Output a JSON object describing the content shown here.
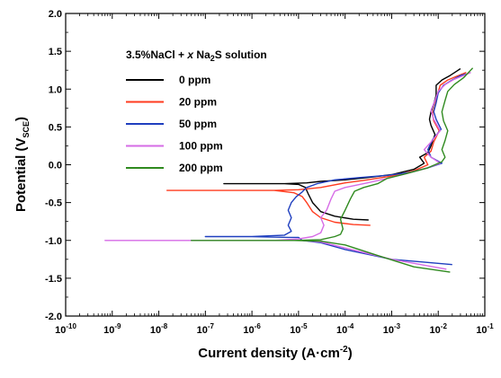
{
  "chart_data": {
    "type": "line",
    "x_scale": "log",
    "xlim": [
      1e-10,
      0.1
    ],
    "ylim": [
      -2.0,
      2.0
    ],
    "grid": false,
    "legend_placement": "top-left",
    "legend_title": {
      "prefix": "3.5%NaCl + ",
      "italic": "x",
      "mid": " Na",
      "sub": "2",
      "suffix": "S solution"
    },
    "xlabel": {
      "text": "Current density (A·cm",
      "sup": "-2",
      "close": ")"
    },
    "ylabel": {
      "text": "Potential (V",
      "sub": "SCE",
      "close": ")"
    },
    "x_ticks": [
      {
        "base": "10",
        "exp": "-10"
      },
      {
        "base": "10",
        "exp": "-9"
      },
      {
        "base": "10",
        "exp": "-8"
      },
      {
        "base": "10",
        "exp": "-7"
      },
      {
        "base": "10",
        "exp": "-6"
      },
      {
        "base": "10",
        "exp": "-5"
      },
      {
        "base": "10",
        "exp": "-4"
      },
      {
        "base": "10",
        "exp": "-3"
      },
      {
        "base": "10",
        "exp": "-2"
      },
      {
        "base": "10",
        "exp": "-1"
      }
    ],
    "y_ticks": [
      "-2.0",
      "-1.5",
      "-1.0",
      "-0.5",
      "0.0",
      "0.5",
      "1.0",
      "1.5",
      "2.0"
    ],
    "series": [
      {
        "name": "0 ppm",
        "color": "#000000",
        "points": [
          [
            0.00032,
            -0.73
          ],
          [
            0.00015,
            -0.72
          ],
          [
            6e-05,
            -0.68
          ],
          [
            3e-05,
            -0.62
          ],
          [
            2e-05,
            -0.5
          ],
          [
            1.6e-05,
            -0.38
          ],
          [
            1.4e-05,
            -0.3
          ],
          [
            1e-05,
            -0.26
          ],
          [
            5e-06,
            -0.25
          ],
          [
            1e-06,
            -0.25
          ],
          [
            2.5e-07,
            -0.25
          ],
          [
            1e-06,
            -0.25
          ],
          [
            5e-06,
            -0.25
          ],
          [
            1.5e-05,
            -0.24
          ],
          [
            3e-05,
            -0.22
          ],
          [
            0.0001,
            -0.2
          ],
          [
            0.0003,
            -0.17
          ],
          [
            0.001,
            -0.13
          ],
          [
            0.003,
            -0.06
          ],
          [
            0.005,
            0.02
          ],
          [
            0.004,
            0.1
          ],
          [
            0.006,
            0.16
          ],
          [
            0.007,
            0.25
          ],
          [
            0.0085,
            0.4
          ],
          [
            0.007,
            0.52
          ],
          [
            0.0065,
            0.6
          ],
          [
            0.007,
            0.7
          ],
          [
            0.008,
            0.8
          ],
          [
            0.009,
            0.92
          ],
          [
            0.009,
            1.05
          ],
          [
            0.012,
            1.12
          ],
          [
            0.018,
            1.18
          ],
          [
            0.03,
            1.27
          ]
        ]
      },
      {
        "name": "20 ppm",
        "color": "#ff3b1f",
        "points": [
          [
            0.00035,
            -0.8
          ],
          [
            0.00015,
            -0.79
          ],
          [
            6e-05,
            -0.76
          ],
          [
            3e-05,
            -0.7
          ],
          [
            2e-05,
            -0.62
          ],
          [
            1.5e-05,
            -0.5
          ],
          [
            1.2e-05,
            -0.42
          ],
          [
            8e-06,
            -0.37
          ],
          [
            3e-06,
            -0.34
          ],
          [
            5e-07,
            -0.34
          ],
          [
            1.5e-08,
            -0.34
          ],
          [
            5e-07,
            -0.34
          ],
          [
            3e-06,
            -0.34
          ],
          [
            1e-05,
            -0.33
          ],
          [
            3e-05,
            -0.3
          ],
          [
            0.0001,
            -0.24
          ],
          [
            0.0003,
            -0.2
          ],
          [
            0.001,
            -0.15
          ],
          [
            0.003,
            -0.08
          ],
          [
            0.006,
            0.0
          ],
          [
            0.005,
            0.1
          ],
          [
            0.007,
            0.18
          ],
          [
            0.008,
            0.3
          ],
          [
            0.0105,
            0.45
          ],
          [
            0.008,
            0.58
          ],
          [
            0.0075,
            0.68
          ],
          [
            0.0085,
            0.78
          ],
          [
            0.0095,
            0.92
          ],
          [
            0.011,
            1.05
          ],
          [
            0.016,
            1.12
          ],
          [
            0.025,
            1.17
          ],
          [
            0.04,
            1.22
          ]
        ]
      },
      {
        "name": "50 ppm",
        "color": "#1f3fbf",
        "points": [
          [
            0.02,
            -1.32
          ],
          [
            0.001,
            -1.25
          ],
          [
            0.0001,
            -1.12
          ],
          [
            3e-05,
            -1.03
          ],
          [
            1.2e-05,
            -1.0
          ],
          [
            1e-05,
            -0.96
          ],
          [
            6e-06,
            -0.96
          ],
          [
            1e-06,
            -0.95
          ],
          [
            1e-07,
            -0.95
          ],
          [
            1e-06,
            -0.95
          ],
          [
            5e-06,
            -0.93
          ],
          [
            7e-06,
            -0.88
          ],
          [
            6e-06,
            -0.8
          ],
          [
            7e-06,
            -0.7
          ],
          [
            6e-06,
            -0.6
          ],
          [
            7e-06,
            -0.5
          ],
          [
            9e-06,
            -0.42
          ],
          [
            1.2e-05,
            -0.36
          ],
          [
            1.5e-05,
            -0.3
          ],
          [
            2.5e-05,
            -0.25
          ],
          [
            6e-05,
            -0.2
          ],
          [
            0.0002,
            -0.17
          ],
          [
            0.0008,
            -0.14
          ],
          [
            0.0025,
            -0.1
          ],
          [
            0.006,
            -0.04
          ],
          [
            0.012,
            0.02
          ],
          [
            0.007,
            0.1
          ],
          [
            0.006,
            0.2
          ],
          [
            0.0075,
            0.33
          ],
          [
            0.0115,
            0.47
          ],
          [
            0.009,
            0.6
          ],
          [
            0.008,
            0.7
          ],
          [
            0.009,
            0.82
          ],
          [
            0.01,
            0.95
          ],
          [
            0.013,
            1.05
          ],
          [
            0.02,
            1.12
          ],
          [
            0.03,
            1.18
          ],
          [
            0.04,
            1.2
          ]
        ]
      },
      {
        "name": "100 ppm",
        "color": "#d66be6",
        "points": [
          [
            0.015,
            -1.38
          ],
          [
            0.001,
            -1.25
          ],
          [
            0.0001,
            -1.1
          ],
          [
            3e-05,
            -1.02
          ],
          [
            1.2e-05,
            -1.0
          ],
          [
            3e-06,
            -1.0
          ],
          [
            1e-07,
            -1.0
          ],
          [
            7e-10,
            -1.0
          ],
          [
            1e-07,
            -1.0
          ],
          [
            3e-06,
            -1.0
          ],
          [
            1e-05,
            -0.98
          ],
          [
            2e-05,
            -0.95
          ],
          [
            3e-05,
            -0.9
          ],
          [
            3.5e-05,
            -0.8
          ],
          [
            3e-05,
            -0.7
          ],
          [
            4e-05,
            -0.6
          ],
          [
            5e-05,
            -0.45
          ],
          [
            6e-05,
            -0.35
          ],
          [
            0.0001,
            -0.3
          ],
          [
            0.0003,
            -0.24
          ],
          [
            0.0008,
            -0.18
          ],
          [
            0.002,
            -0.12
          ],
          [
            0.006,
            -0.04
          ],
          [
            0.011,
            0.02
          ],
          [
            0.007,
            0.1
          ],
          [
            0.005,
            0.2
          ],
          [
            0.007,
            0.3
          ],
          [
            0.011,
            0.45
          ],
          [
            0.008,
            0.6
          ],
          [
            0.007,
            0.72
          ],
          [
            0.0085,
            0.85
          ],
          [
            0.01,
            0.97
          ],
          [
            0.014,
            1.06
          ],
          [
            0.022,
            1.13
          ],
          [
            0.035,
            1.18
          ],
          [
            0.05,
            1.22
          ]
        ]
      },
      {
        "name": "200 ppm",
        "color": "#2f8a1f",
        "points": [
          [
            0.018,
            -1.42
          ],
          [
            0.003,
            -1.35
          ],
          [
            0.0005,
            -1.2
          ],
          [
            0.0001,
            -1.06
          ],
          [
            3e-05,
            -1.01
          ],
          [
            8e-06,
            -1.0
          ],
          [
            1e-06,
            -1.0
          ],
          [
            5e-08,
            -1.0
          ],
          [
            1e-06,
            -1.0
          ],
          [
            8e-06,
            -1.0
          ],
          [
            3e-05,
            -0.99
          ],
          [
            6e-05,
            -0.95
          ],
          [
            8e-05,
            -0.92
          ],
          [
            9e-05,
            -0.85
          ],
          [
            8e-05,
            -0.72
          ],
          [
            0.0001,
            -0.6
          ],
          [
            0.00013,
            -0.45
          ],
          [
            0.00016,
            -0.35
          ],
          [
            0.00025,
            -0.3
          ],
          [
            0.0005,
            -0.25
          ],
          [
            0.0008,
            -0.18
          ],
          [
            0.002,
            -0.12
          ],
          [
            0.006,
            -0.04
          ],
          [
            0.012,
            0.04
          ],
          [
            0.014,
            0.1
          ],
          [
            0.012,
            0.2
          ],
          [
            0.014,
            0.32
          ],
          [
            0.016,
            0.45
          ],
          [
            0.013,
            0.58
          ],
          [
            0.012,
            0.7
          ],
          [
            0.014,
            0.85
          ],
          [
            0.016,
            0.97
          ],
          [
            0.022,
            1.06
          ],
          [
            0.035,
            1.15
          ],
          [
            0.055,
            1.28
          ]
        ]
      }
    ]
  }
}
